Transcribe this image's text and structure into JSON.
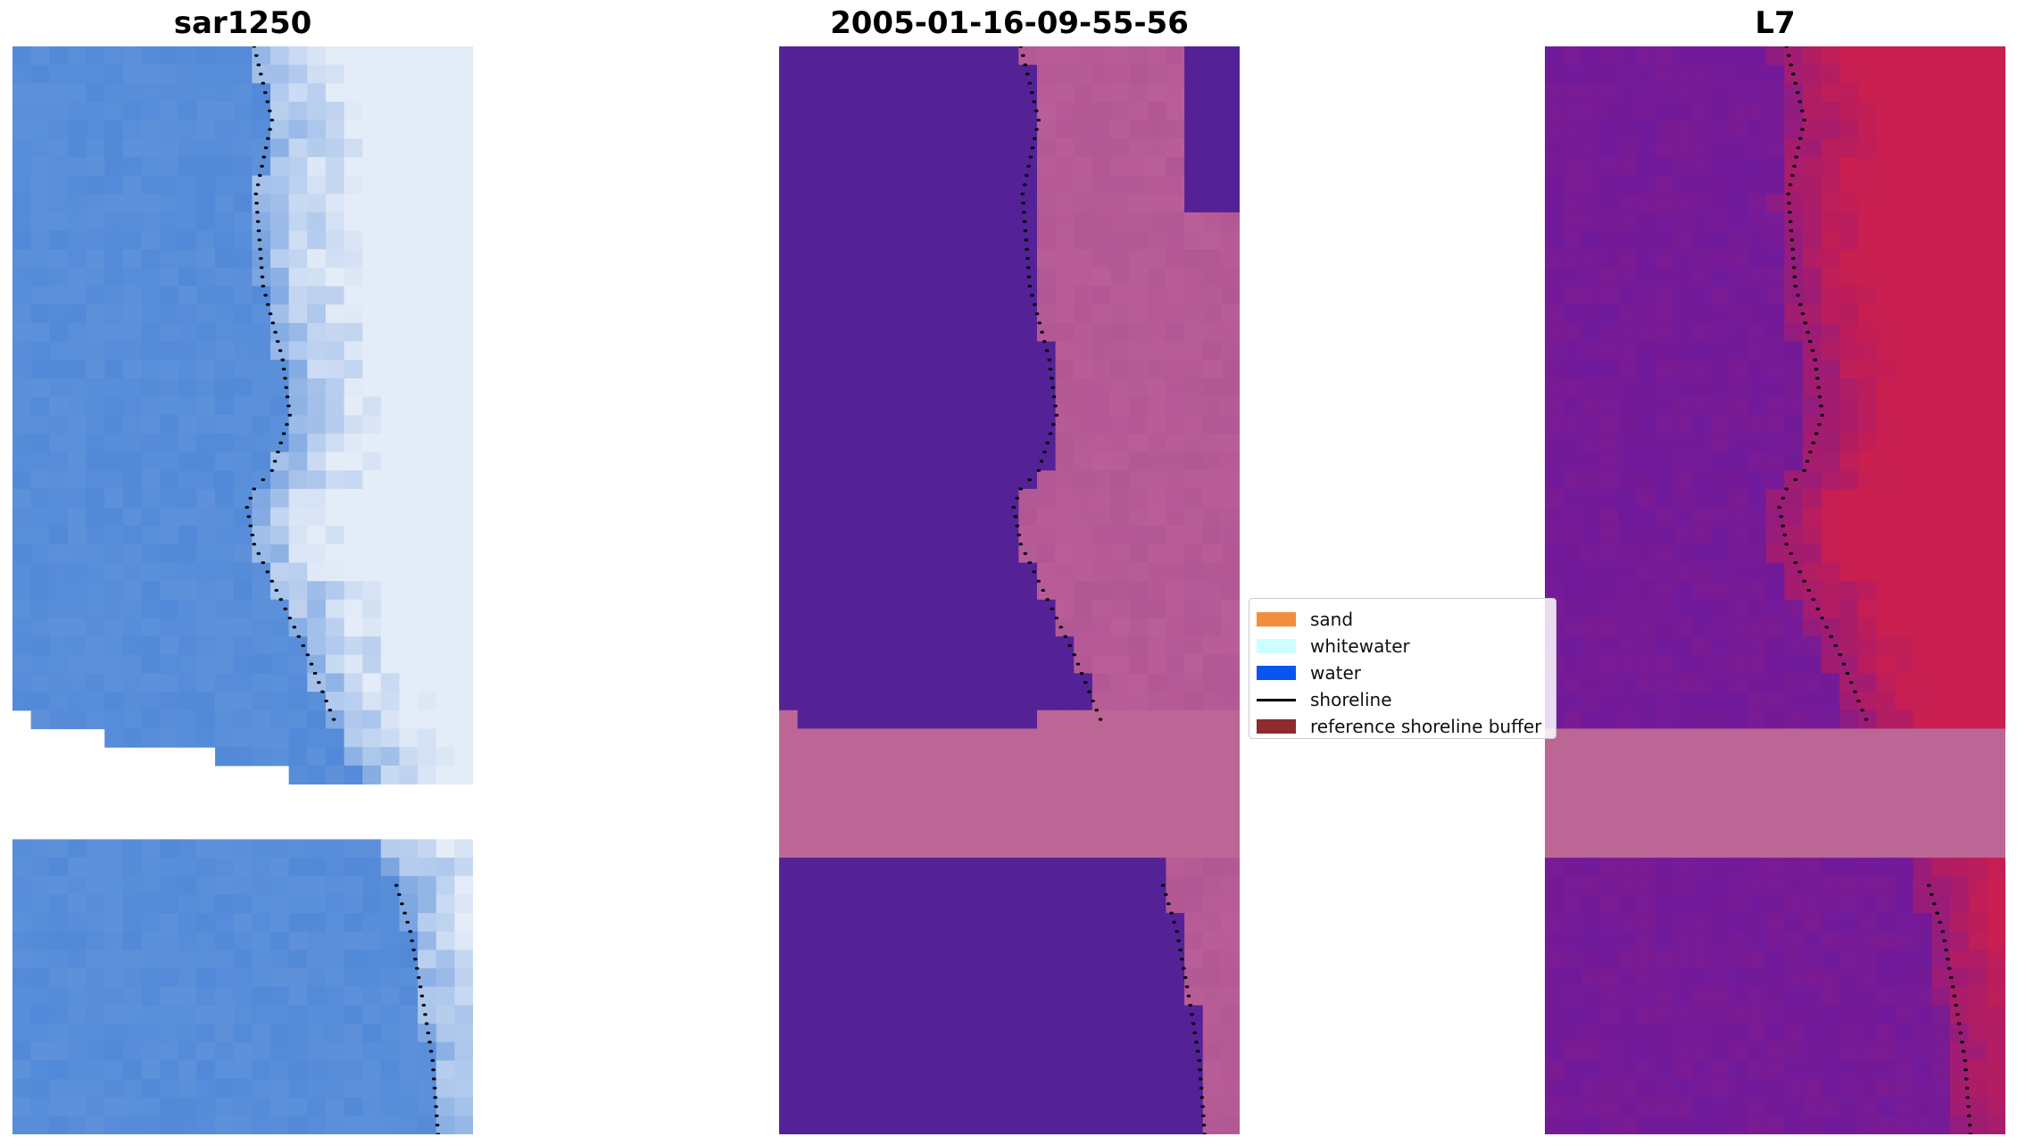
{
  "panels": [
    {
      "title": "sar1250",
      "kind": "rgb"
    },
    {
      "title": "2005-01-16-09-55-56",
      "kind": "classified"
    },
    {
      "title": "L7",
      "kind": "index"
    }
  ],
  "legend": {
    "items": [
      {
        "label": "sand",
        "color": "#f28d3c",
        "type": "patch"
      },
      {
        "label": "whitewater",
        "color": "#ccffff",
        "type": "patch"
      },
      {
        "label": "water",
        "color": "#0a55f0",
        "type": "patch"
      },
      {
        "label": "shoreline",
        "color": "#000000",
        "type": "line"
      },
      {
        "label": "reference shoreline buffer",
        "color": "#8e2b2e",
        "type": "patch"
      }
    ]
  },
  "colors": {
    "water_class": "#542296",
    "buffer": "#bc6696",
    "sar_water": "#4a84d6",
    "sar_foam": "#e4ecf8",
    "index_low": "#6b1aa0",
    "index_high": "#c81e50",
    "shoreline": "#000000"
  }
}
